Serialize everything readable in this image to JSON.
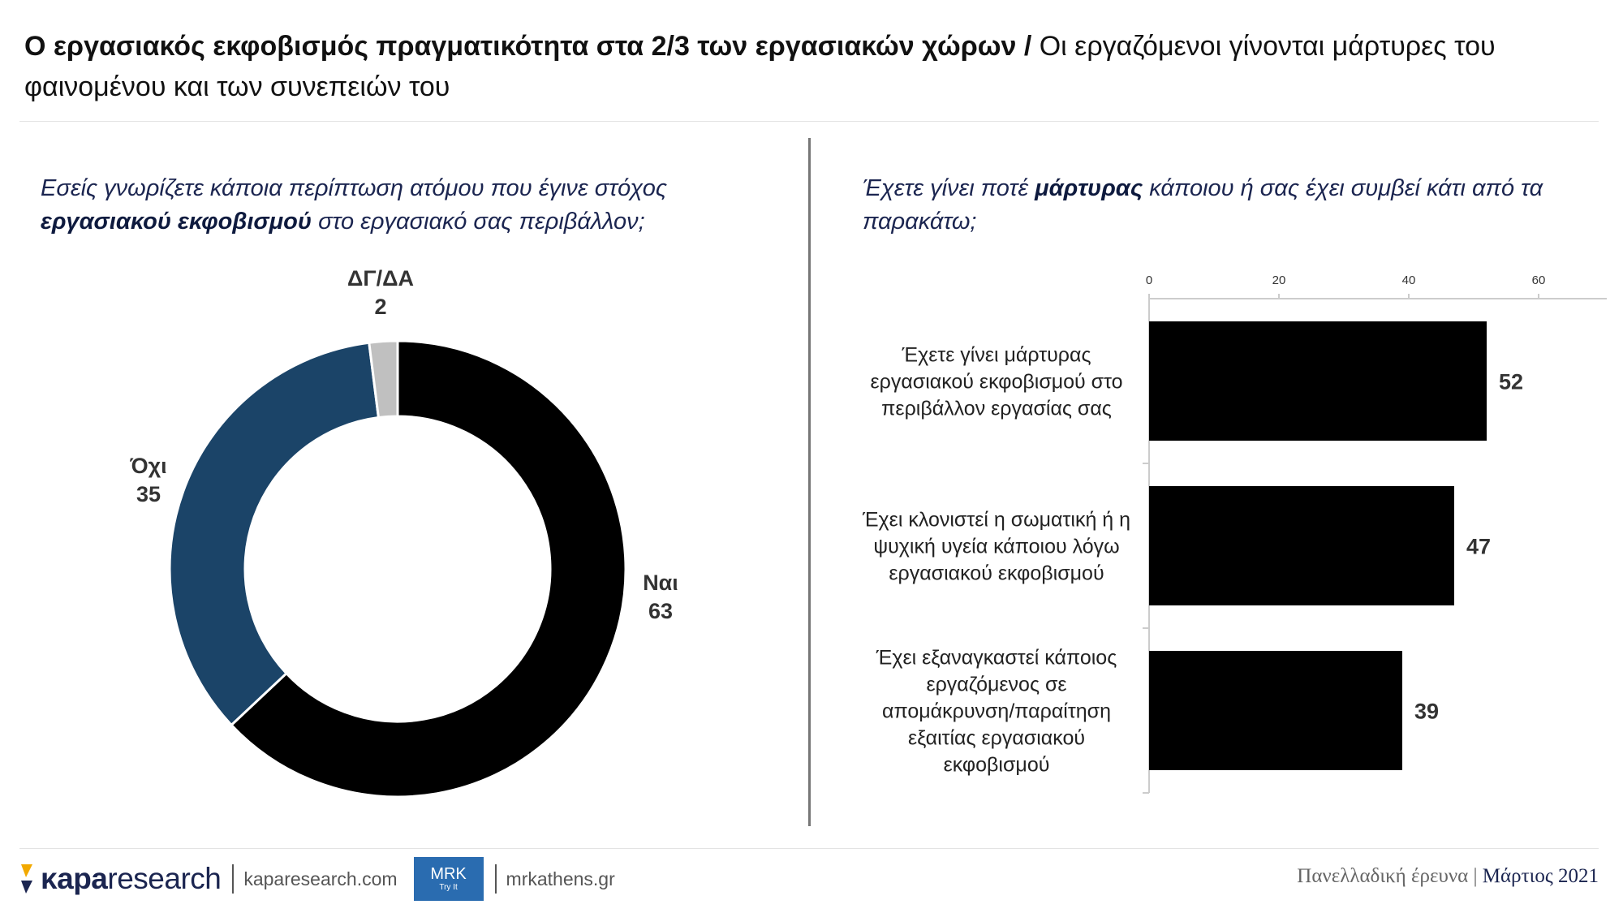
{
  "title": {
    "bold": "Ο εργασιακός εκφοβισμός πραγματικότητα στα 2/3 των εργασιακών χώρων /",
    "normal": " Οι εργαζόμενοι γίνονται μάρτυρες του φαινομένου και των συνεπειών του"
  },
  "left_question": {
    "part1": "Εσείς γνωρίζετε κάποια περίπτωση ατόμου που έγινε στόχος ",
    "bold": "εργασιακού εκφοβισμού",
    "part2": " στο εργασιακό σας περιβάλλον;"
  },
  "right_question": {
    "part1": "Έχετε γίνει ποτέ ",
    "bold": "μάρτυρας",
    "part2": " κάποιου ή σας έχει συμβεί κάτι από τα παρακάτω;"
  },
  "chart_data": [
    {
      "type": "pie",
      "labels": [
        "Ναι",
        "Όχι",
        "ΔΓ/ΔΑ"
      ],
      "values": [
        63,
        35,
        2
      ],
      "colors": [
        "#000000",
        "#1b4468",
        "#c0c0c0"
      ]
    },
    {
      "type": "bar",
      "orientation": "horizontal",
      "categories": [
        "Έχετε γίνει μάρτυρας εργασιακού εκφοβισμού στο περιβάλλον εργασίας σας",
        "Έχει κλονιστεί η σωματική ή η ψυχική υγεία κάποιου λόγω εργασιακού εκφοβισμού",
        "Έχει εξαναγκαστεί κάποιος εργαζόμενος σε απομάκρυνση/παραίτηση εξαιτίας εργασιακού εκφοβισμού"
      ],
      "category_lines": [
        [
          "Έχετε γίνει μάρτυρας",
          "εργασιακού εκφοβισμού στο",
          "περιβάλλον εργασίας σας"
        ],
        [
          "Έχει κλονιστεί η σωματική ή η",
          "ψυχική υγεία κάποιου λόγω",
          "εργασιακού εκφοβισμού"
        ],
        [
          "Έχει εξαναγκαστεί κάποιος",
          "εργαζόμενος σε",
          "απομάκρυνση/παραίτηση",
          "εξαιτίας εργασιακού",
          "εκφοβισμού"
        ]
      ],
      "values": [
        52,
        47,
        39
      ],
      "xlim": [
        0,
        70
      ],
      "ticks": [
        0,
        20,
        40,
        60
      ],
      "color": "#000000"
    }
  ],
  "footer": {
    "brand_bold": "κapa",
    "brand_light": "research",
    "site1": "kaparesearch.com",
    "mrk_main": "MRK",
    "mrk_sub": "Try It",
    "site2": "mrkathens.gr",
    "survey": "Πανελλαδική έρευνα",
    "divider": " | ",
    "date": "Μάρτιος 2021"
  }
}
